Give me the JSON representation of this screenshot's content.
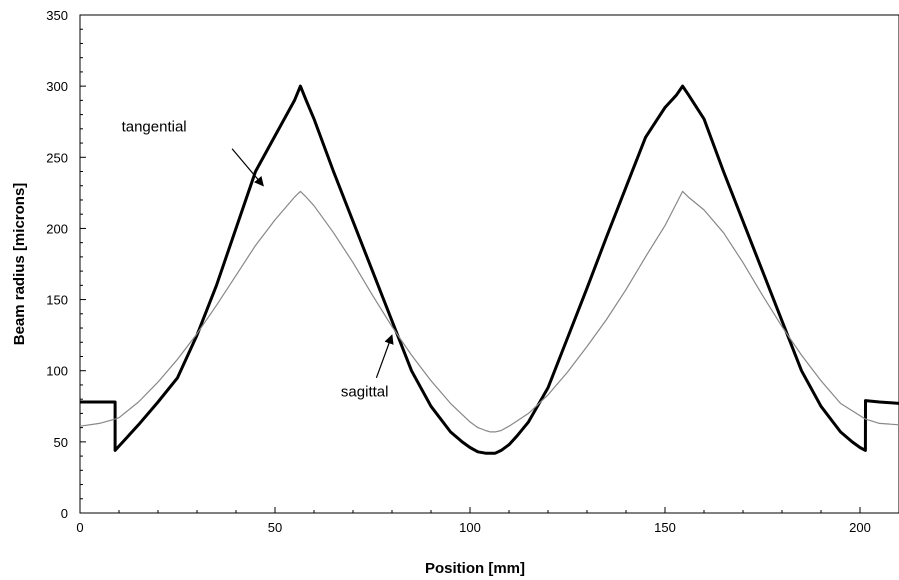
{
  "chart_data": {
    "type": "line",
    "title": "",
    "xlabel": "Position  [mm]",
    "ylabel": "Beam radius  [microns]",
    "xlim": [
      0,
      210
    ],
    "ylim": [
      0,
      350
    ],
    "x_ticks": [
      "0",
      "50",
      "100",
      "150",
      "200"
    ],
    "y_ticks": [
      "0",
      "50",
      "100",
      "150",
      "200",
      "250",
      "300",
      "350"
    ],
    "grid": false,
    "legend": "none",
    "series": [
      {
        "key": "tangential",
        "color": "#000000",
        "style": "thick",
        "x": [
          0,
          9,
          9.01,
          10,
          12,
          15,
          20,
          25,
          30,
          35,
          40,
          45,
          50,
          55,
          56.5,
          58,
          60,
          65,
          70,
          75,
          80,
          85,
          90,
          95,
          98,
          100,
          102,
          104,
          105.2,
          106.5,
          108,
          110,
          112,
          115,
          120,
          125,
          130,
          135,
          140,
          145,
          150,
          153,
          154.5,
          156,
          160,
          165,
          170,
          175,
          180,
          185,
          190,
          195,
          198,
          200,
          201.39,
          201.4,
          205,
          210
        ],
        "y": [
          78,
          78,
          44,
          47,
          53,
          62,
          78,
          95,
          125,
          160,
          200,
          240,
          265,
          290,
          300,
          290,
          277,
          240,
          205,
          170,
          135,
          100,
          75,
          57,
          50,
          46,
          43,
          42,
          42,
          42,
          44,
          48,
          54,
          64,
          88,
          123,
          158,
          194,
          229,
          264,
          285,
          294,
          300,
          294,
          277,
          240,
          205,
          170,
          135,
          100,
          75,
          57,
          50,
          46,
          44,
          79,
          78,
          77
        ]
      },
      {
        "key": "sagittal",
        "color": "#888888",
        "style": "thin",
        "x": [
          0,
          5,
          9,
          10,
          15,
          20,
          25,
          30,
          35,
          40,
          45,
          50,
          55,
          56.5,
          58,
          60,
          65,
          70,
          75,
          80,
          85,
          90,
          95,
          100,
          102,
          104,
          105.2,
          106.5,
          108,
          110,
          115,
          120,
          125,
          130,
          135,
          140,
          145,
          150,
          154.5,
          156,
          160,
          165,
          170,
          175,
          180,
          185,
          190,
          195,
          201.4,
          205,
          210
        ],
        "y": [
          61,
          63,
          66,
          67,
          78,
          92,
          108,
          126,
          146,
          167,
          188,
          206,
          222,
          226,
          222,
          216,
          197,
          176,
          153,
          131,
          111,
          93,
          77,
          64,
          60,
          58,
          57,
          57,
          58,
          61,
          70,
          83,
          99,
          117,
          136,
          157,
          180,
          202,
          226,
          222,
          213,
          197,
          176,
          153,
          131,
          111,
          93,
          77,
          66,
          63,
          62
        ]
      }
    ],
    "annotations": [
      {
        "label": "tangential",
        "text_x": 19,
        "text_y": 268,
        "arrow_from": [
          39,
          256
        ],
        "arrow_to": [
          47,
          230
        ]
      },
      {
        "label": "sagittal",
        "text_x": 73,
        "text_y": 82,
        "arrow_from": [
          76,
          95
        ],
        "arrow_to": [
          80,
          125
        ]
      }
    ]
  }
}
